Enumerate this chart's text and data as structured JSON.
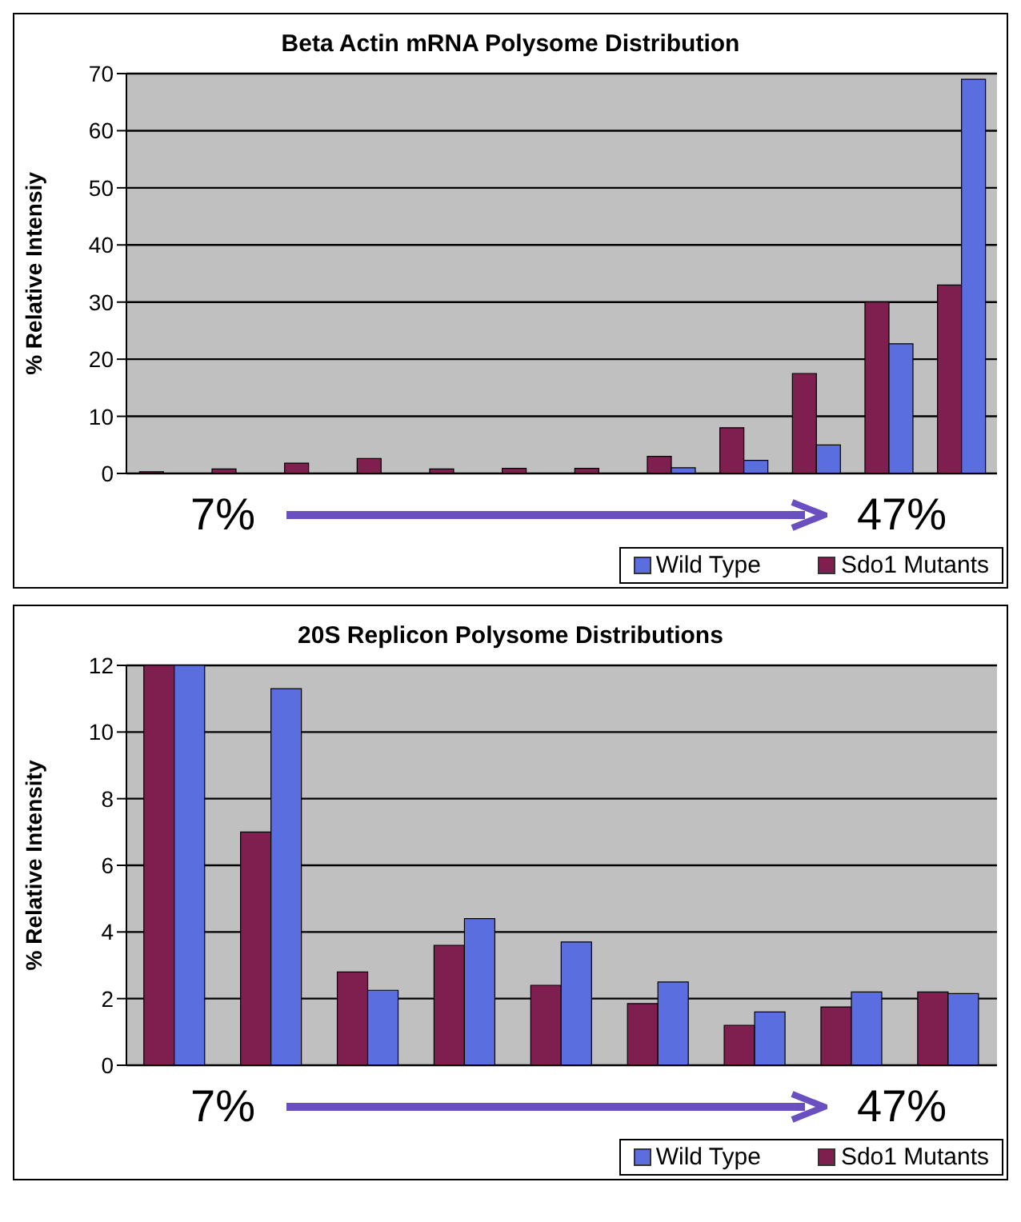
{
  "chart_data": [
    {
      "type": "bar",
      "title": "Beta Actin mRNA Polysome Distribution",
      "ylabel": "% Relative Intensiy",
      "categories": [
        null,
        null,
        null,
        null,
        null,
        null,
        null,
        null,
        null,
        null,
        null,
        null
      ],
      "series": [
        {
          "name": "Sdo1 Mutants",
          "color": "#7f1f4f",
          "values": [
            0.3,
            0.8,
            1.8,
            2.6,
            0.8,
            0.9,
            0.9,
            3,
            8,
            17.5,
            30,
            33
          ]
        },
        {
          "name": "Wild Type",
          "color": "#5b6ee0",
          "values": [
            0,
            0,
            0,
            0,
            0,
            0,
            0,
            1,
            2.3,
            5,
            22.7,
            69
          ]
        }
      ],
      "ylim": [
        0,
        70
      ],
      "yticks": [
        0,
        10,
        20,
        30,
        40,
        50,
        60,
        70
      ],
      "grid": "y",
      "legend": "bottom right",
      "tick_labels": "y",
      "annotations": [
        "7%",
        "47%"
      ]
    },
    {
      "type": "bar",
      "title": "20S Replicon Polysome Distributions",
      "ylabel": "% Relative Intensity",
      "categories": [
        null,
        null,
        null,
        null,
        null,
        null,
        null,
        null,
        null
      ],
      "series": [
        {
          "name": "Sdo1 Mutants",
          "color": "#7f1f4f",
          "values": [
            12,
            7,
            2.8,
            3.6,
            2.4,
            1.85,
            1.2,
            1.75,
            2.2
          ]
        },
        {
          "name": "Wild Type",
          "color": "#5b6ee0",
          "values": [
            12,
            11.3,
            2.25,
            4.4,
            3.7,
            2.5,
            1.6,
            2.2,
            2.15
          ]
        }
      ],
      "ylim": [
        0,
        12
      ],
      "yticks": [
        0,
        2,
        4,
        6,
        8,
        10,
        12
      ],
      "grid": "y",
      "legend": "bottom right",
      "tick_labels": "y",
      "annotations": [
        "7%",
        "47%"
      ]
    }
  ]
}
